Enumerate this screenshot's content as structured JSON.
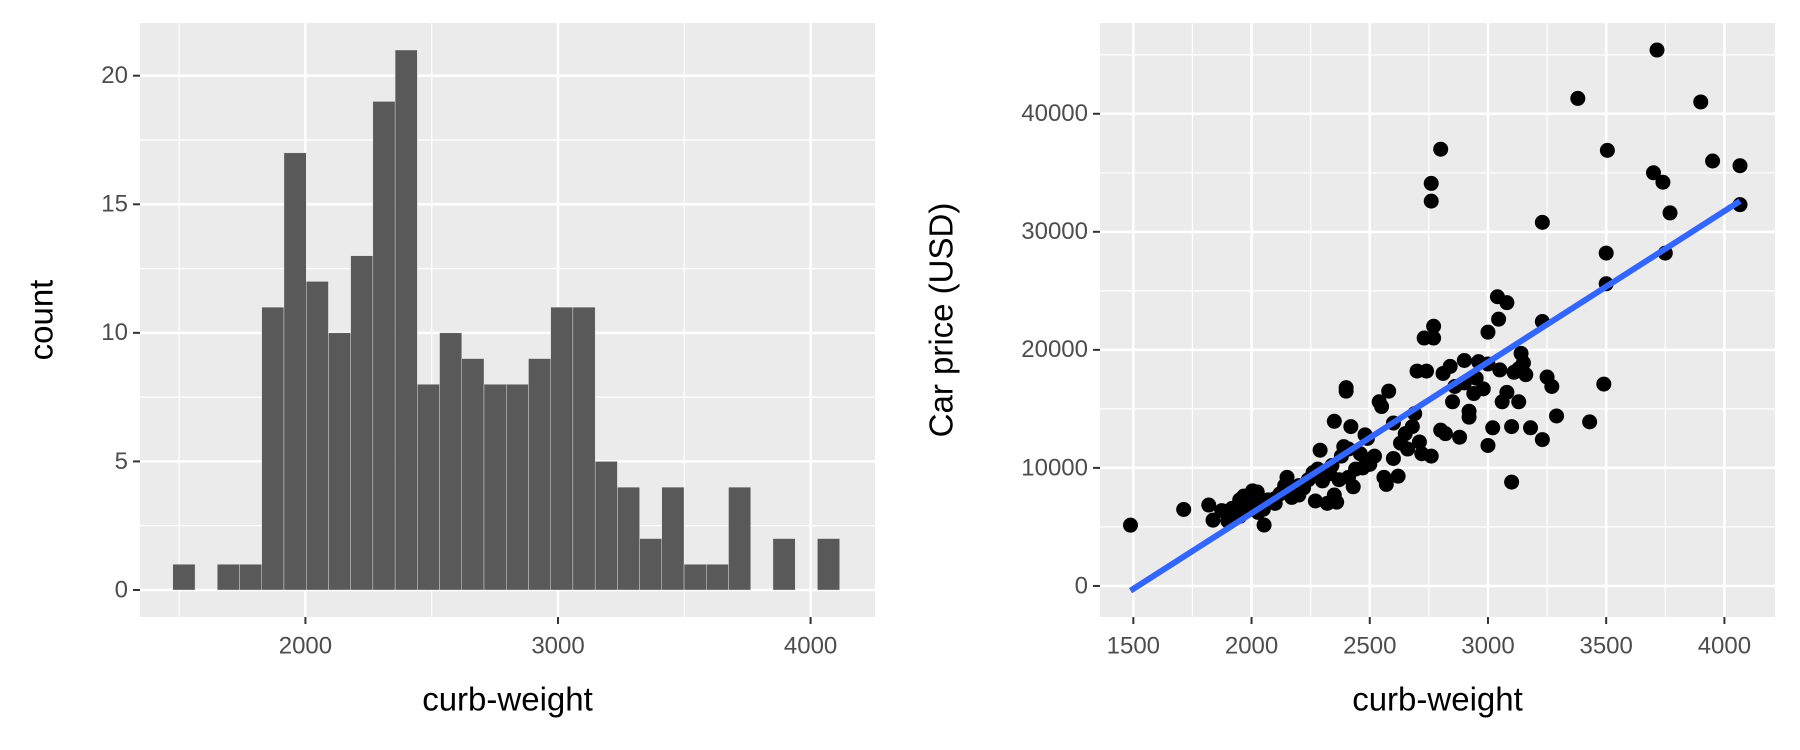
{
  "chart_data": [
    {
      "type": "histogram",
      "x_label": "curb-weight",
      "y_label": "count",
      "color": "#595959",
      "bins": [
        1475,
        1563,
        1651,
        1739,
        1827,
        1915,
        2003,
        2091,
        2179,
        2267,
        2355,
        2443,
        2531,
        2619,
        2707,
        2795,
        2883,
        2971,
        3059,
        3147,
        3235,
        3323,
        3411,
        3499,
        3587,
        3675,
        3763,
        3851,
        3939,
        4027,
        4115
      ],
      "values": [
        1,
        0,
        1,
        1,
        11,
        17,
        12,
        10,
        13,
        19,
        21,
        8,
        10,
        9,
        8,
        8,
        9,
        11,
        11,
        5,
        4,
        2,
        4,
        1,
        1,
        4,
        0,
        2,
        0,
        2
      ],
      "xlim": [
        1345,
        4255
      ],
      "xticks": [
        2000,
        3000,
        4000
      ],
      "xminor": [
        1500,
        2500,
        3500
      ],
      "ylim": [
        -1.05,
        22.05
      ],
      "yticks": [
        0,
        5,
        10,
        15,
        20
      ],
      "yminor": [
        2.5,
        7.5,
        12.5,
        17.5
      ],
      "grid": true
    },
    {
      "type": "scatter",
      "x_label": "curb-weight",
      "y_label": "Car price (USD)",
      "color": "#000000",
      "x": [
        1488,
        1713,
        1819,
        1837,
        1874,
        1890,
        1900,
        1918,
        1940,
        1950,
        1967,
        1989,
        2004,
        2015,
        2024,
        2028,
        2053,
        2050,
        2070,
        2100,
        2120,
        2140,
        2150,
        2170,
        2190,
        2200,
        2220,
        2240,
        2260,
        2280,
        2290,
        2300,
        2320,
        2330,
        2340,
        2350,
        2360,
        2380,
        2390,
        2400,
        2400,
        2410,
        2420,
        2430,
        2440,
        2460,
        2480,
        2500,
        2520,
        2540,
        2550,
        2560,
        2570,
        2580,
        2600,
        2620,
        2650,
        2660,
        2680,
        2700,
        2710,
        2720,
        2730,
        2740,
        2760,
        2770,
        2770,
        2760,
        2760,
        2800,
        2810,
        2820,
        2840,
        2860,
        2880,
        2900,
        2920,
        2920,
        2940,
        2960,
        2980,
        3000,
        3000,
        3020,
        3040,
        3045,
        3050,
        3060,
        3080,
        3080,
        3100,
        3100,
        3130,
        3130,
        3140,
        3150,
        3160,
        3180,
        3230,
        3230,
        3230,
        3250,
        3270,
        3290,
        3380,
        3430,
        3490,
        3500,
        3500,
        3505,
        3700,
        3715,
        3740,
        3750,
        3770,
        3900,
        3950,
        4066,
        4066,
        1950,
        2000,
        2050,
        2100,
        2200,
        2270,
        2350,
        2370,
        2410,
        2470,
        2490,
        2600,
        2630,
        2690,
        2800,
        2850,
        2900,
        2950,
        3000,
        3110
      ],
      "y": [
        5151,
        6479,
        6855,
        5572,
        6377,
        6295,
        5500,
        6575,
        6488,
        7295,
        7609,
        6692,
        8058,
        7775,
        7957,
        6229,
        5160,
        7000,
        7295,
        7400,
        7800,
        8500,
        9200,
        7500,
        8000,
        8500,
        8300,
        9000,
        9600,
        9900,
        11500,
        8900,
        7000,
        9500,
        10200,
        13950,
        7100,
        11000,
        11800,
        16800,
        16500,
        9200,
        13500,
        8400,
        9900,
        11200,
        12800,
        10300,
        11000,
        15600,
        15200,
        9200,
        8600,
        16500,
        13800,
        9300,
        12900,
        11600,
        13500,
        18200,
        12200,
        11200,
        21000,
        18200,
        11000,
        21000,
        22000,
        34100,
        32600,
        37000,
        18000,
        12900,
        18600,
        16900,
        12600,
        17200,
        14800,
        14300,
        16300,
        19000,
        16700,
        11900,
        21500,
        13400,
        24500,
        22600,
        18300,
        15600,
        16400,
        24000,
        13500,
        8800,
        15600,
        18400,
        19700,
        18900,
        17900,
        13400,
        22400,
        12400,
        30800,
        17700,
        16900,
        14400,
        41300,
        13900,
        17100,
        28200,
        25600,
        36900,
        35000,
        45400,
        34200,
        28200,
        31600,
        41000,
        36000,
        35600,
        32300,
        5900,
        7300,
        6500,
        7000,
        7700,
        7200,
        7700,
        9000,
        11600,
        10000,
        12500,
        10800,
        12100,
        14600,
        13200,
        15600,
        19100,
        17600,
        18800,
        18100
      ],
      "trend": {
        "x": [
          1488,
          4066
        ],
        "y": [
          -400,
          32600
        ],
        "color": "#3366ff"
      },
      "xlim": [
        1359,
        4214
      ],
      "xticks": [
        1500,
        2000,
        2500,
        3000,
        3500,
        4000
      ],
      "xminor": [
        1750,
        2250,
        2750,
        3250,
        3750
      ],
      "ylim": [
        -2630,
        47690
      ],
      "yticks": [
        0,
        10000,
        20000,
        30000,
        40000
      ],
      "yminor": [
        5000,
        15000,
        25000,
        35000,
        45000
      ],
      "grid": true
    }
  ]
}
